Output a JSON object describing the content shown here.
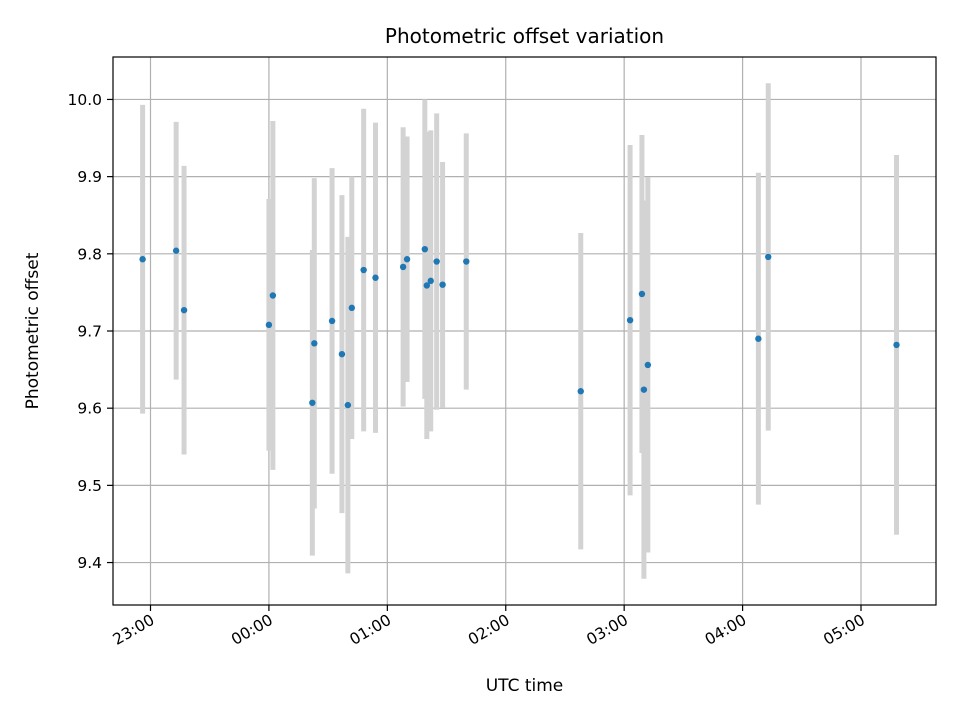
{
  "chart_data": {
    "type": "scatter",
    "title": "Photometric offset variation",
    "xlabel": "UTC time",
    "ylabel": "Photometric offset",
    "grid": true,
    "xlim": [
      "22:41",
      "05:38"
    ],
    "ylim": [
      9.345,
      10.055
    ],
    "x_ticks": [
      "23:00",
      "00:00",
      "01:00",
      "02:00",
      "03:00",
      "04:00",
      "05:00"
    ],
    "y_ticks": [
      "9.4",
      "9.5",
      "9.6",
      "9.7",
      "9.8",
      "9.9",
      "10.0"
    ],
    "colors": {
      "marker": "#1f77b4",
      "errorbar": "#d3d3d3",
      "grid": "#b0b0b0"
    },
    "points": [
      {
        "x": "22:56",
        "y": 9.793,
        "err": 0.2
      },
      {
        "x": "23:13",
        "y": 9.804,
        "err": 0.167
      },
      {
        "x": "23:17",
        "y": 9.727,
        "err": 0.187
      },
      {
        "x": "00:00",
        "y": 9.708,
        "err": 0.163
      },
      {
        "x": "00:02",
        "y": 9.746,
        "err": 0.226
      },
      {
        "x": "00:22",
        "y": 9.607,
        "err": 0.198
      },
      {
        "x": "00:23",
        "y": 9.684,
        "err": 0.214
      },
      {
        "x": "00:32",
        "y": 9.713,
        "err": 0.198
      },
      {
        "x": "00:37",
        "y": 9.67,
        "err": 0.206
      },
      {
        "x": "00:40",
        "y": 9.604,
        "err": 0.218
      },
      {
        "x": "00:42",
        "y": 9.73,
        "err": 0.17
      },
      {
        "x": "00:48",
        "y": 9.779,
        "err": 0.209
      },
      {
        "x": "00:54",
        "y": 9.769,
        "err": 0.201
      },
      {
        "x": "01:08",
        "y": 9.783,
        "err": 0.181
      },
      {
        "x": "01:10",
        "y": 9.793,
        "err": 0.159
      },
      {
        "x": "01:19",
        "y": 9.806,
        "err": 0.194
      },
      {
        "x": "01:20",
        "y": 9.759,
        "err": 0.199
      },
      {
        "x": "01:22",
        "y": 9.765,
        "err": 0.195
      },
      {
        "x": "01:25",
        "y": 9.79,
        "err": 0.192
      },
      {
        "x": "01:28",
        "y": 9.76,
        "err": 0.159
      },
      {
        "x": "01:40",
        "y": 9.79,
        "err": 0.166
      },
      {
        "x": "02:38",
        "y": 9.622,
        "err": 0.205
      },
      {
        "x": "03:03",
        "y": 9.714,
        "err": 0.227
      },
      {
        "x": "03:09",
        "y": 9.748,
        "err": 0.206
      },
      {
        "x": "03:10",
        "y": 9.624,
        "err": 0.245
      },
      {
        "x": "03:12",
        "y": 9.656,
        "err": 0.243
      },
      {
        "x": "04:08",
        "y": 9.69,
        "err": 0.215
      },
      {
        "x": "04:13",
        "y": 9.796,
        "err": 0.225
      },
      {
        "x": "05:18",
        "y": 9.682,
        "err": 0.246
      }
    ]
  }
}
